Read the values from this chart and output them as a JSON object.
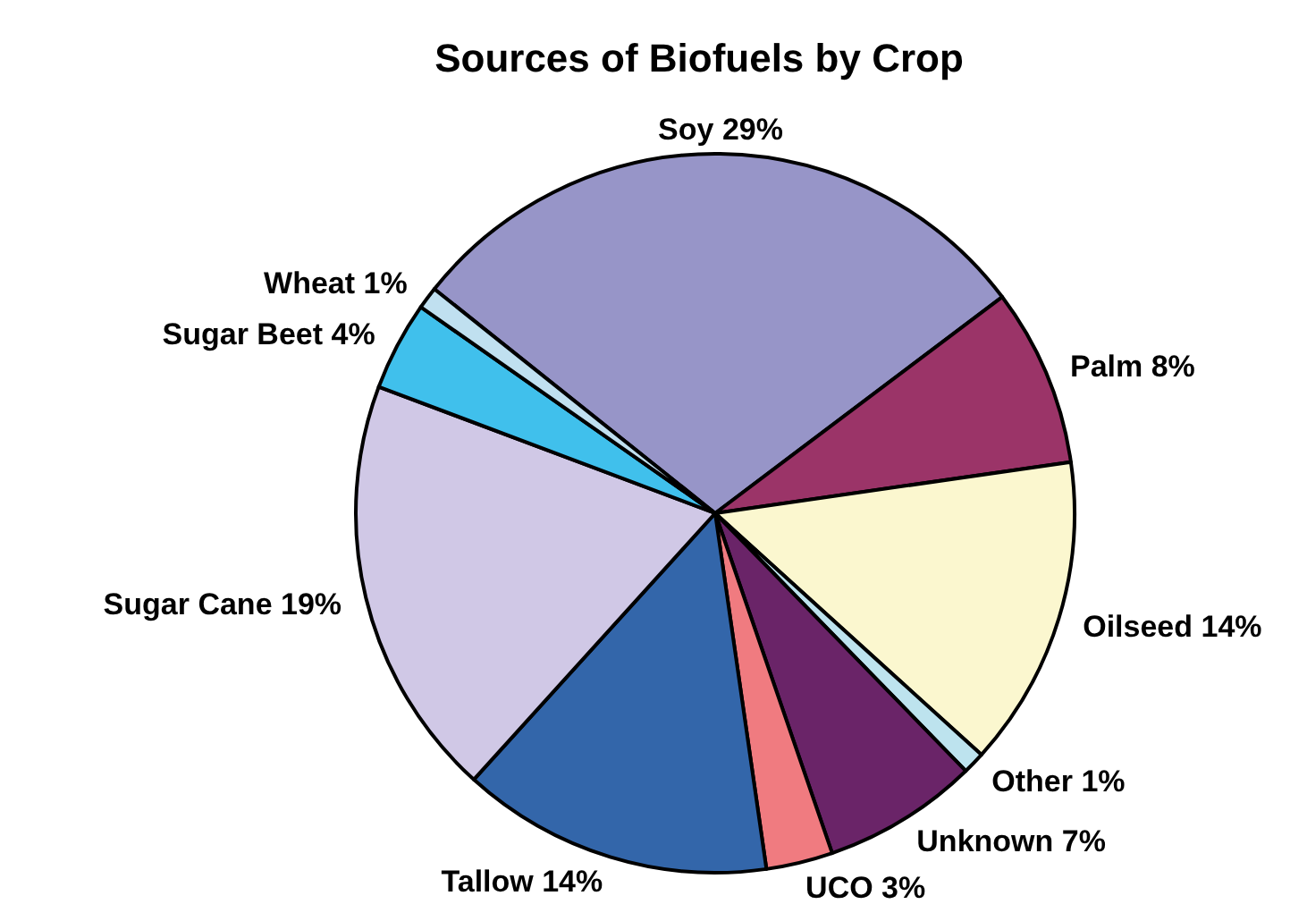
{
  "chart_data": {
    "type": "pie",
    "title": "Sources of Biofuels by Crop",
    "categories": [
      "Soy",
      "Palm",
      "Oilseed",
      "Other",
      "Unknown",
      "UCO",
      "Tallow",
      "Sugar Cane",
      "Sugar Beet",
      "Wheat"
    ],
    "values": [
      29,
      8,
      14,
      1,
      7,
      3,
      14,
      19,
      4,
      1
    ],
    "value_labels": [
      "29%",
      "8%",
      "14%",
      "1%",
      "7%",
      "3%",
      "14%",
      "19%",
      "4%",
      "1%"
    ],
    "colors": [
      "#9795c8",
      "#9b3468",
      "#fbf7cf",
      "#bde3ee",
      "#6a2468",
      "#f07b80",
      "#3366aa",
      "#d0c8e6",
      "#40c0ec",
      "#c0e0f0"
    ],
    "legend": false
  }
}
